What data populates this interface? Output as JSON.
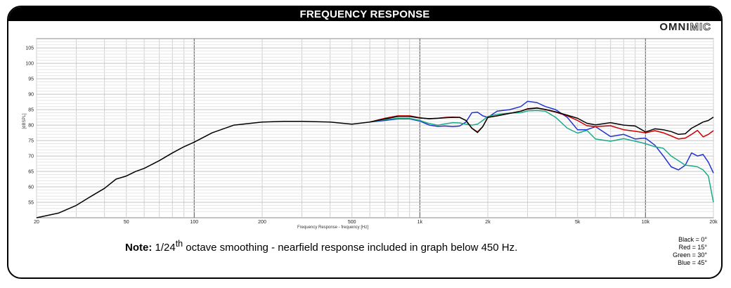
{
  "title": "FREQUENCY RESPONSE",
  "brand": {
    "part1": "OMNI",
    "part2": "MIC"
  },
  "note": {
    "bold": "Note:",
    "prefix": " 1/24",
    "sup": "th",
    "rest": " octave smoothing - nearfield response included in graph below 450 Hz."
  },
  "legend": [
    "Black = 0°",
    "Red = 15°",
    "Green = 30°",
    "Blue = 45°"
  ],
  "chart_data": {
    "type": "line",
    "xlabel": "Frequency Response - frequency [Hz]",
    "ylabel": "[dBSPL]",
    "xscale": "log",
    "xlim": [
      20,
      20000
    ],
    "ylim": [
      50,
      108
    ],
    "grid": true,
    "x_ticks": [
      {
        "v": 20,
        "label": "20"
      },
      {
        "v": 50,
        "label": "50"
      },
      {
        "v": 100,
        "label": "100"
      },
      {
        "v": 200,
        "label": "200"
      },
      {
        "v": 500,
        "label": "500"
      },
      {
        "v": 1000,
        "label": "1k"
      },
      {
        "v": 2000,
        "label": "2k"
      },
      {
        "v": 5000,
        "label": "5k"
      },
      {
        "v": 10000,
        "label": "10k"
      },
      {
        "v": 20000,
        "label": "20k"
      }
    ],
    "y_ticks": [
      55,
      60,
      65,
      70,
      75,
      80,
      85,
      90,
      95,
      100,
      105
    ],
    "series": [
      {
        "name": "Black = 0°",
        "color": "#000000",
        "x": [
          20,
          25,
          30,
          35,
          40,
          45,
          50,
          55,
          60,
          70,
          80,
          90,
          100,
          120,
          150,
          200,
          250,
          300,
          400,
          500,
          600,
          700,
          800,
          900,
          1000,
          1100,
          1200,
          1300,
          1400,
          1500,
          1600,
          1700,
          1800,
          1900,
          2000,
          2200,
          2500,
          2800,
          3000,
          3300,
          3600,
          4000,
          4500,
          5000,
          5500,
          6000,
          7000,
          8000,
          9000,
          10000,
          11000,
          12000,
          13000,
          14000,
          15000,
          16000,
          17000,
          18000,
          19000,
          20000
        ],
        "y": [
          49,
          51.5,
          54,
          57,
          59.5,
          62.5,
          63.5,
          65,
          66,
          68.5,
          71,
          73,
          74.5,
          77.5,
          80,
          81,
          81.2,
          81.2,
          81,
          80.3,
          81,
          82,
          82.8,
          82.8,
          82.3,
          82.1,
          82.2,
          82.4,
          82.5,
          82.5,
          81.5,
          79,
          77.6,
          79.5,
          82.5,
          83,
          83.8,
          84.5,
          85.2,
          85.5,
          85.1,
          84.3,
          83.2,
          82.2,
          80.6,
          80.1,
          80.8,
          80,
          79.7,
          77.8,
          78.8,
          78.5,
          77.9,
          77,
          77.2,
          79,
          80,
          81,
          81.5,
          82.6
        ]
      },
      {
        "name": "Red = 15°",
        "color": "#cc0000",
        "x": [
          600,
          700,
          800,
          900,
          1000,
          1100,
          1200,
          1300,
          1400,
          1500,
          1600,
          1700,
          1800,
          1900,
          2000,
          2200,
          2500,
          2800,
          3000,
          3300,
          3600,
          4000,
          4500,
          5000,
          5500,
          6000,
          7000,
          8000,
          9000,
          10000,
          11000,
          12000,
          13000,
          14000,
          15000,
          16000,
          17000,
          18000,
          19000,
          20000
        ],
        "y": [
          81,
          82.2,
          83,
          83,
          82.4,
          82,
          82.2,
          82.5,
          82.6,
          82.5,
          81.5,
          79,
          77.8,
          79.5,
          82.5,
          83,
          83.8,
          84.5,
          85.3,
          85.6,
          85,
          84.2,
          83,
          81.5,
          79.8,
          79.5,
          79.8,
          78.5,
          78,
          77.5,
          78.2,
          77.5,
          76.5,
          75.5,
          75.8,
          77,
          78.3,
          76.2,
          77,
          78.2
        ]
      },
      {
        "name": "Green = 30°",
        "color": "#1aaa88",
        "x": [
          600,
          700,
          800,
          900,
          1000,
          1100,
          1200,
          1300,
          1400,
          1500,
          1600,
          1700,
          1800,
          1900,
          2000,
          2200,
          2500,
          2800,
          3000,
          3300,
          3600,
          4000,
          4500,
          5000,
          5500,
          6000,
          7000,
          8000,
          9000,
          10000,
          11000,
          12000,
          13000,
          14000,
          15000,
          16000,
          17000,
          18000,
          19000,
          20000
        ],
        "y": [
          81,
          81.8,
          82.2,
          82.2,
          81.5,
          80.5,
          80,
          80.4,
          80.8,
          80.7,
          80.3,
          80,
          80.3,
          81.5,
          82.8,
          83.5,
          83.9,
          84,
          84.6,
          84.7,
          84.5,
          82.5,
          79,
          77.4,
          78.3,
          75.5,
          74.8,
          75.6,
          74.8,
          74,
          73,
          72.5,
          70,
          68.5,
          67,
          66.8,
          66.5,
          65.5,
          63.5,
          55
        ]
      },
      {
        "name": "Blue = 45°",
        "color": "#2233cc",
        "x": [
          600,
          700,
          800,
          900,
          1000,
          1100,
          1200,
          1300,
          1400,
          1500,
          1600,
          1700,
          1800,
          1900,
          2000,
          2200,
          2500,
          2800,
          3000,
          3300,
          3600,
          4000,
          4500,
          5000,
          5500,
          6000,
          7000,
          8000,
          9000,
          10000,
          11000,
          12000,
          13000,
          14000,
          15000,
          16000,
          17000,
          18000,
          19000,
          20000
        ],
        "y": [
          81,
          81.5,
          82,
          82,
          81.3,
          80,
          79.6,
          79.7,
          79.5,
          79.7,
          81,
          84,
          84.2,
          83,
          82.5,
          84.5,
          85,
          86,
          87.7,
          87.3,
          86,
          85,
          82.5,
          78.5,
          78.5,
          79.5,
          76.3,
          77,
          75.5,
          75.8,
          73.5,
          70,
          66.5,
          65.5,
          67,
          71,
          70,
          70.5,
          68,
          64.5
        ]
      }
    ]
  }
}
